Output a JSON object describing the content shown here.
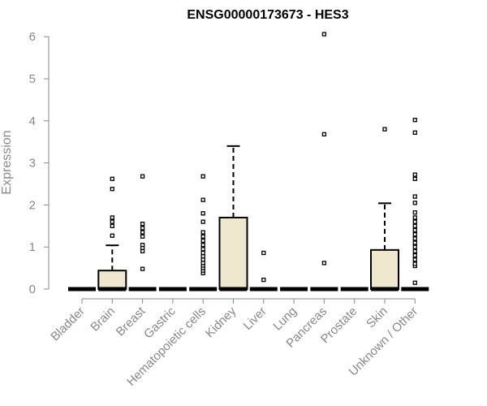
{
  "chart_data": {
    "type": "box",
    "title": "ENSG00000173673 - HES3",
    "xlabel": "",
    "ylabel": "Expression",
    "ylim": [
      0,
      6.2
    ],
    "yticks": [
      0,
      1,
      2,
      3,
      4,
      5,
      6
    ],
    "colors": {
      "box_fill": "#efe8cf",
      "box_stroke": "#000000",
      "axis": "#888888"
    },
    "categories": [
      "Bladder",
      "Brain",
      "Breast",
      "Gastric",
      "Hematopoietic cells",
      "Kidney",
      "Liver",
      "Lung",
      "Pancreas",
      "Prostate",
      "Skin",
      "Unknown / Other"
    ],
    "boxes": [
      {
        "category": "Bladder",
        "q1": 0,
        "median": 0,
        "q3": 0,
        "whisker_low": 0,
        "whisker_high": 0,
        "outliers": []
      },
      {
        "category": "Brain",
        "q1": 0,
        "median": 0,
        "q3": 0.44,
        "whisker_low": 0,
        "whisker_high": 1.04,
        "outliers": [
          1.27,
          1.5,
          1.6,
          1.7,
          2.38,
          2.62
        ]
      },
      {
        "category": "Breast",
        "q1": 0,
        "median": 0,
        "q3": 0,
        "whisker_low": 0,
        "whisker_high": 0,
        "outliers": [
          0.48,
          0.9,
          0.98,
          1.05,
          1.25,
          1.35,
          1.45,
          1.55,
          2.68
        ]
      },
      {
        "category": "Gastric",
        "q1": 0,
        "median": 0,
        "q3": 0,
        "whisker_low": 0,
        "whisker_high": 0,
        "outliers": []
      },
      {
        "category": "Hematopoietic cells",
        "q1": 0,
        "median": 0,
        "q3": 0,
        "whisker_low": 0,
        "whisker_high": 0,
        "outliers": [
          0.38,
          0.44,
          0.5,
          0.56,
          0.62,
          0.7,
          0.78,
          0.86,
          0.95,
          1.05,
          1.15,
          1.25,
          1.35,
          1.6,
          1.8,
          2.12,
          2.68
        ]
      },
      {
        "category": "Kidney",
        "q1": 0,
        "median": 0,
        "q3": 1.7,
        "whisker_low": 0,
        "whisker_high": 3.4,
        "outliers": []
      },
      {
        "category": "Liver",
        "q1": 0,
        "median": 0,
        "q3": 0,
        "whisker_low": 0,
        "whisker_high": 0,
        "outliers": [
          0.22,
          0.86
        ]
      },
      {
        "category": "Lung",
        "q1": 0,
        "median": 0,
        "q3": 0,
        "whisker_low": 0,
        "whisker_high": 0,
        "outliers": []
      },
      {
        "category": "Pancreas",
        "q1": 0,
        "median": 0,
        "q3": 0,
        "whisker_low": 0,
        "whisker_high": 0,
        "outliers": [
          0.62,
          3.68,
          6.06
        ]
      },
      {
        "category": "Prostate",
        "q1": 0,
        "median": 0,
        "q3": 0,
        "whisker_low": 0,
        "whisker_high": 0,
        "outliers": []
      },
      {
        "category": "Skin",
        "q1": 0,
        "median": 0,
        "q3": 0.93,
        "whisker_low": 0,
        "whisker_high": 2.04,
        "outliers": [
          3.8
        ]
      },
      {
        "category": "Unknown / Other",
        "q1": 0,
        "median": 0,
        "q3": 0,
        "whisker_low": 0,
        "whisker_high": 0,
        "outliers": [
          0.15,
          0.55,
          0.6,
          0.7,
          0.8,
          0.9,
          1.0,
          1.1,
          1.2,
          1.3,
          1.4,
          1.5,
          1.6,
          1.7,
          1.82,
          2.05,
          2.2,
          2.62,
          2.72,
          3.72,
          4.02
        ]
      }
    ],
    "grid": false,
    "legend": "none"
  }
}
